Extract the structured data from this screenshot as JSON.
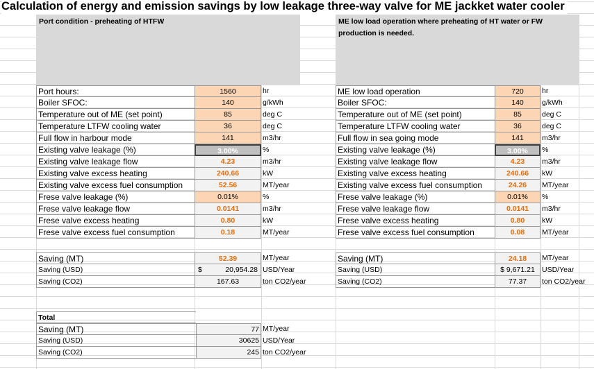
{
  "title": "Calculation of energy and emission savings by low leakage three-way valve for ME jackket water cooler",
  "left": {
    "header": "Port condition - preheating of HTFW",
    "rows": [
      {
        "label": "Port hours:",
        "value": "1560",
        "unit": "hr",
        "style": "in"
      },
      {
        "label": "Boiler SFOC:",
        "value": "140",
        "unit": "g/kWh",
        "style": "in"
      },
      {
        "label": "Temperature out of ME (set point)",
        "value": "85",
        "unit": "deg C",
        "style": "in"
      },
      {
        "label": "Temperature LTFW cooling water",
        "value": "36",
        "unit": "deg C",
        "style": "in"
      },
      {
        "label": "Full flow in harbour mode",
        "value": "141",
        "unit": "m3/hr",
        "style": "in"
      },
      {
        "label": "Existing valve leakage (%)",
        "value": "3.00%",
        "unit": "%",
        "style": "sel"
      },
      {
        "label": "Existing valve leakage flow",
        "value": "4.23",
        "unit": "m3/hr",
        "style": "out"
      },
      {
        "label": "Existing valve excess heating",
        "value": "240.66",
        "unit": "kW",
        "style": "out"
      },
      {
        "label": "Existing valve excess fuel consumption",
        "value": "52.56",
        "unit": "MT/year",
        "style": "out"
      },
      {
        "label": "Frese valve leakage (%)",
        "value": "0.01%",
        "unit": "%",
        "style": "in"
      },
      {
        "label": "Frese valve leakage flow",
        "value": "0.0141",
        "unit": "m3/hr",
        "style": "out"
      },
      {
        "label": "Frese valve excess heating",
        "value": "0.80",
        "unit": "kW",
        "style": "out"
      },
      {
        "label": "Frese valve excess fuel consumption",
        "value": "0.18",
        "unit": "MT/year",
        "style": "out"
      }
    ],
    "savings": [
      {
        "label": "Saving (MT)",
        "value": "52.39",
        "unit": "MT/year",
        "style": "out",
        "small": false
      },
      {
        "label": "Saving (USD)",
        "value": "20,954.28",
        "currency": "$",
        "unit": "USD/Year",
        "style": "black",
        "small": true
      },
      {
        "label": "Saving (CO2)",
        "value": "167.63",
        "unit": "ton CO2/year",
        "style": "black",
        "small": true
      }
    ]
  },
  "right": {
    "header": "ME low load operation where preheating of HT water or FW production is needed.",
    "rows": [
      {
        "label": "ME low load operation",
        "value": "720",
        "unit": "hr",
        "style": "in"
      },
      {
        "label": "Boiler SFOC:",
        "value": "140",
        "unit": "g/kWh",
        "style": "in"
      },
      {
        "label": "Temperature out of ME (set point)",
        "value": "85",
        "unit": "deg C",
        "style": "in"
      },
      {
        "label": "Temperature LTFW cooling water",
        "value": "36",
        "unit": "deg C",
        "style": "in"
      },
      {
        "label": "Full flow in sea going mode",
        "value": "141",
        "unit": "m3/hr",
        "style": "in"
      },
      {
        "label": "Existing valve leakage (%)",
        "value": "3.00%",
        "unit": "%",
        "style": "sel"
      },
      {
        "label": "Existing valve leakage flow",
        "value": "4.23",
        "unit": "m3/hr",
        "style": "out"
      },
      {
        "label": "Existing valve excess heating",
        "value": "240.66",
        "unit": "kW",
        "style": "out"
      },
      {
        "label": "Existing valve excess fuel consumption",
        "value": "24.26",
        "unit": "MT/year",
        "style": "out"
      },
      {
        "label": "Frese valve leakage (%)",
        "value": "0.01%",
        "unit": "%",
        "style": "in"
      },
      {
        "label": "Frese valve leakage flow",
        "value": "0.0141",
        "unit": "m3/hr",
        "style": "out"
      },
      {
        "label": "Frese valve excess heating",
        "value": "0.80",
        "unit": "kW",
        "style": "out"
      },
      {
        "label": "Frese valve excess fuel consumption",
        "value": "0.08",
        "unit": "MT/year",
        "style": "out"
      }
    ],
    "savings": [
      {
        "label": "Saving (MT)",
        "value": "24.18",
        "unit": "MT/year",
        "style": "out",
        "small": false
      },
      {
        "label": "Saving (USD)",
        "value": "$ 9,671.21",
        "unit": "USD/Year",
        "style": "black",
        "small": true
      },
      {
        "label": "Saving (CO2)",
        "value": "77.37",
        "unit": "ton CO2/year",
        "style": "black",
        "small": true
      }
    ]
  },
  "total": {
    "header": "Total",
    "rows": [
      {
        "label": "Saving (MT)",
        "value": "77",
        "unit": "MT/year",
        "small": false
      },
      {
        "label": "Saving (USD)",
        "value": "30625",
        "unit": "USD/Year",
        "small": true
      },
      {
        "label": "Saving (CO2)",
        "value": "245",
        "unit": "ton CO2/year",
        "small": true
      }
    ]
  }
}
